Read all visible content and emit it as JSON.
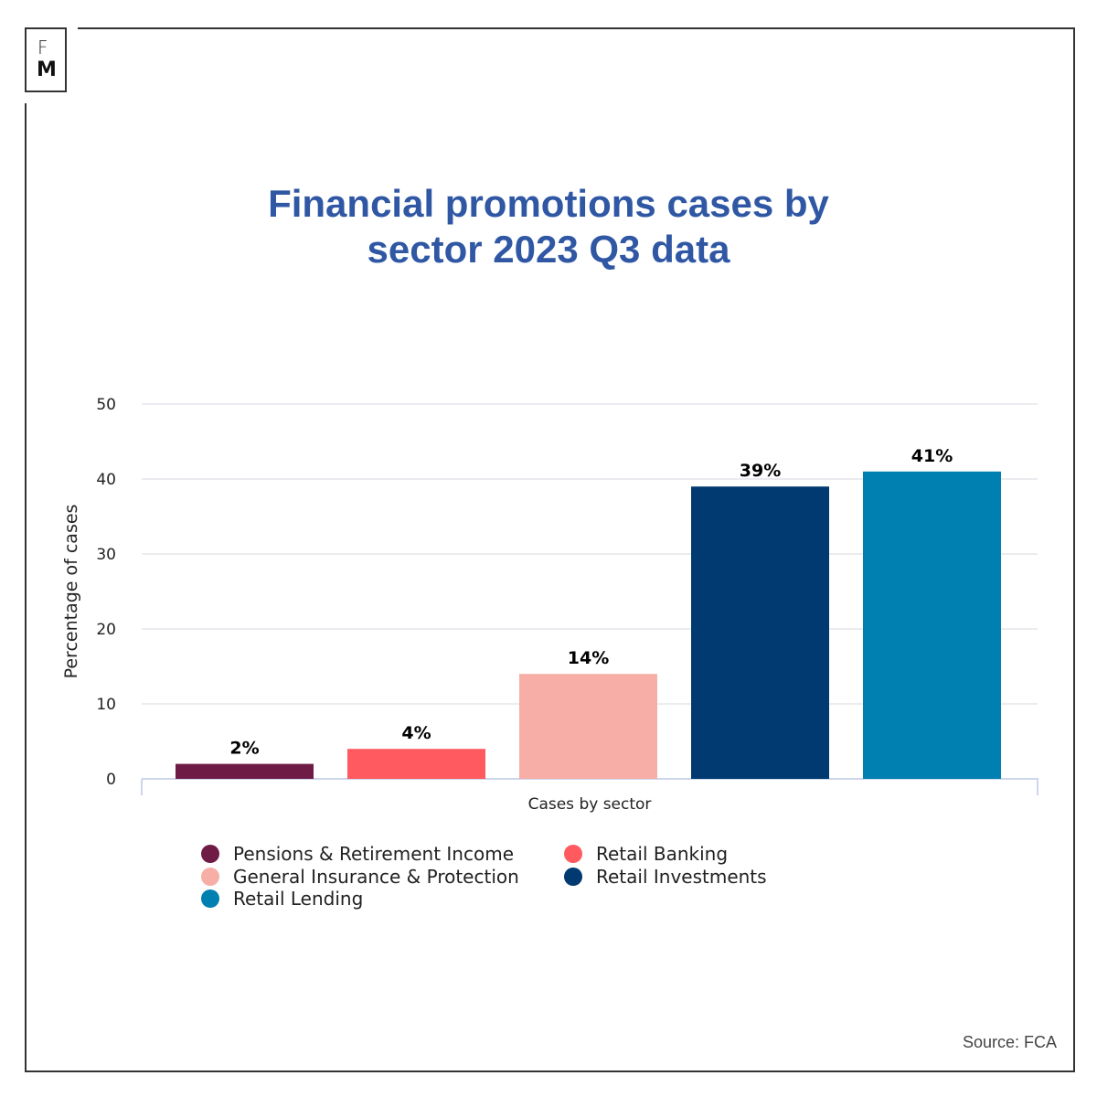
{
  "logo": {
    "line1": "F",
    "line2": "M"
  },
  "chart_data": {
    "type": "bar",
    "title": "Financial promotions cases by sector 2023 Q3 data",
    "title_lines": [
      "Financial promotions cases by",
      "sector 2023 Q3 data"
    ],
    "xlabel": "Cases by sector",
    "ylabel": "Percentage of cases",
    "ylim": [
      0,
      50
    ],
    "yticks": [
      0,
      10,
      20,
      30,
      40,
      50
    ],
    "grid": true,
    "legend_position": "bottom",
    "categories": [
      "Pensions & Retirement Income",
      "Retail Banking",
      "General Insurance & Protection",
      "Retail Investments",
      "Retail Lending"
    ],
    "values": [
      2,
      4,
      14,
      39,
      41
    ],
    "data_labels": [
      "2%",
      "4%",
      "14%",
      "39%",
      "41%"
    ],
    "colors": [
      "#6e1b45",
      "#ff5a5f",
      "#f7aea6",
      "#003a70",
      "#0080b0"
    ]
  },
  "source": "Source: FCA"
}
